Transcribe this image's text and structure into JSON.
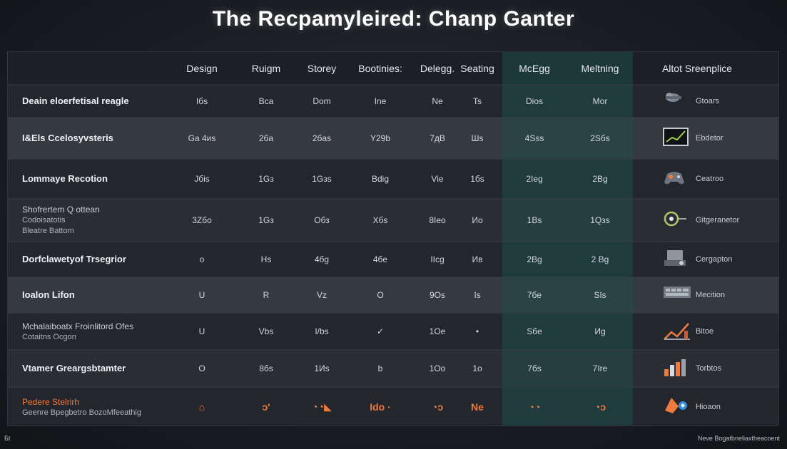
{
  "title": "The Recpamyleired: Chanp Ganter",
  "colors": {
    "background": "#1b1e24",
    "panel": "#1e2127",
    "highlight_column": "#1f4d4d",
    "accent": "#f07a3c",
    "text": "#e6e8ec"
  },
  "chart_data": {
    "type": "table",
    "highlight_columns": [
      "McEgg",
      "Meltning"
    ],
    "columns": [
      "Design",
      "Ruigm",
      "Storey",
      "Bootinies:",
      "Delegg.",
      "Seating",
      "McEgg",
      "Meltning"
    ],
    "app_column_header": "Altot Sreenplice",
    "rows": [
      {
        "label": "Deain eloerfetisal reagle",
        "sub": [],
        "values": [
          "Iбs",
          "Bca",
          "Dom",
          "Ine",
          "Ne",
          "Ts",
          "Dios",
          "Mor"
        ],
        "app": {
          "label": "Gtoars",
          "icon": "cloud-icon"
        }
      },
      {
        "label": "I&Els Ccelosyvsteris",
        "sub": [],
        "values": [
          "Ga 4иs",
          "2бa",
          "2бas",
          "Y29b",
          "7дB",
          "Шs",
          "4Sss",
          "2Sбs"
        ],
        "app": {
          "label": "Ebdetor",
          "icon": "monitor-icon"
        }
      },
      {
        "label": "Lommaye Recotion",
        "sub": [],
        "values": [
          "Jбis",
          "1Gз",
          "1Gзs",
          "Bdig",
          "Vie",
          "1бs",
          "2Ieg",
          "2Вg"
        ],
        "app": {
          "label": "Ceatroo",
          "icon": "gamepad-icon"
        }
      },
      {
        "label": "Shofrertem Q ottean",
        "sub": [
          "Codoisatotis",
          "Bleatre Battom"
        ],
        "values": [
          "3Zбo",
          "1Gз",
          "Oбз",
          "Xбs",
          "8Ieo",
          "Иo",
          "1Bs",
          "1Qзs"
        ],
        "app": {
          "label": "Gitgeranetor",
          "icon": "pin-icon"
        }
      },
      {
        "label": "Dorfclawetyof Trsegrior",
        "sub": [],
        "values": [
          "o",
          "Hs",
          "4бg",
          "4бe",
          "IIcg",
          "Ив",
          "2Bg",
          "2 Вg"
        ],
        "app": {
          "label": "Cergapton",
          "icon": "projector-icon"
        }
      },
      {
        "label": "Ioalon Lifon",
        "sub": [],
        "values": [
          "U",
          "R",
          "Vz",
          "O",
          "9Os",
          "Is",
          "7бe",
          "SIs"
        ],
        "app": {
          "label": "Mecition",
          "icon": "keyboard-icon"
        }
      },
      {
        "label": "Mchalaiboatx Froinlitord Ofes",
        "sub": [
          "Cotaitns Ocgon"
        ],
        "values": [
          "U",
          "Vbs",
          "I/bs",
          "✓",
          "1Oe",
          "•",
          "Sбe",
          "Иg"
        ],
        "app": {
          "label": "Bitoe",
          "icon": "chart-icon"
        }
      },
      {
        "label": "Vtamer Greargsbtamter",
        "sub": [],
        "values": [
          "O",
          "8бs",
          "1Иs",
          "b",
          "1Oo",
          "1o",
          "7бs",
          "7Ire"
        ],
        "app": {
          "label": "Torbtos",
          "icon": "bars-icon"
        }
      },
      {
        "label": "Pedere Stelrirh",
        "sub": [
          "Geenre Bpegbetro BozoMfeeathig"
        ],
        "values": [
          "⌂",
          "ɔ'",
          "◔◔◣",
          "Ido ·",
          "◔ɔ",
          "Ne",
          "◔◔",
          "◔ɔ"
        ],
        "accent": true,
        "app": {
          "label": "Hioaon",
          "icon": "rocket-icon"
        }
      }
    ]
  },
  "footnote_left": "Бt",
  "footnote_right": "Neve Bogatbneliaxtheacoent"
}
